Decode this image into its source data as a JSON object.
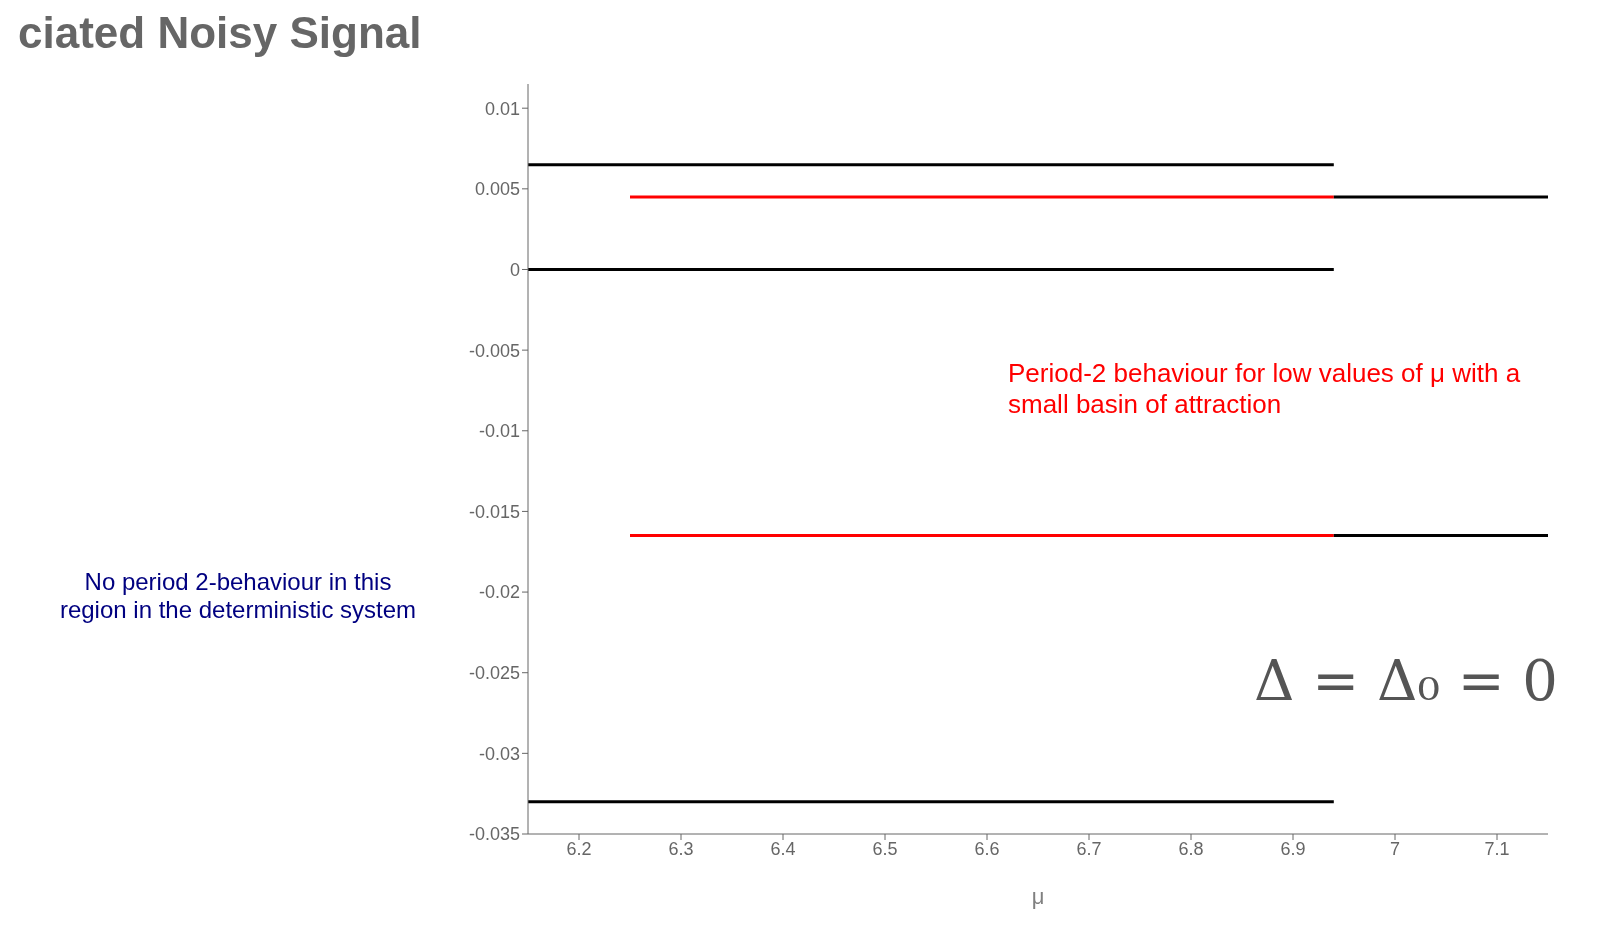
{
  "chart_data": {
    "type": "line",
    "title": "ciated Noisy Signal",
    "xlabel": "μ",
    "xlim": [
      6.15,
      7.15
    ],
    "xticks": [
      6.2,
      6.3,
      6.4,
      6.5,
      6.6,
      6.7,
      6.8,
      6.9,
      7,
      7.1
    ],
    "ylim": [
      -0.035,
      0.0115
    ],
    "yticks": [
      0.01,
      0.005,
      0,
      -0.005,
      -0.01,
      -0.015,
      -0.02,
      -0.025,
      -0.03,
      -0.035
    ],
    "grid": false,
    "marker": "none",
    "line_style": "solid",
    "series": [
      {
        "color": "#000000",
        "x": [
          6.15,
          6.94
        ],
        "values": [
          0.0065,
          0.0065
        ]
      },
      {
        "color": "#ff0000",
        "x": [
          6.25,
          6.94
        ],
        "values": [
          0.0045,
          0.0045
        ]
      },
      {
        "color": "#000000",
        "x": [
          6.94,
          7.15
        ],
        "values": [
          0.0045,
          0.0045
        ]
      },
      {
        "color": "#000000",
        "x": [
          6.15,
          6.94
        ],
        "values": [
          0,
          0
        ]
      },
      {
        "color": "#ff0000",
        "x": [
          6.25,
          6.94
        ],
        "values": [
          -0.0165,
          -0.0165
        ]
      },
      {
        "color": "#000000",
        "x": [
          6.94,
          7.15
        ],
        "values": [
          -0.0165,
          -0.0165
        ]
      },
      {
        "color": "#000000",
        "x": [
          6.15,
          6.94
        ],
        "values": [
          -0.033,
          -0.033
        ]
      }
    ],
    "annotations": [
      "No period 2-behaviour in this region in the deterministic system",
      "Period-2 behaviour for low values of μ with a small basin of attraction",
      "Δ = Δ₀ = 0"
    ]
  }
}
